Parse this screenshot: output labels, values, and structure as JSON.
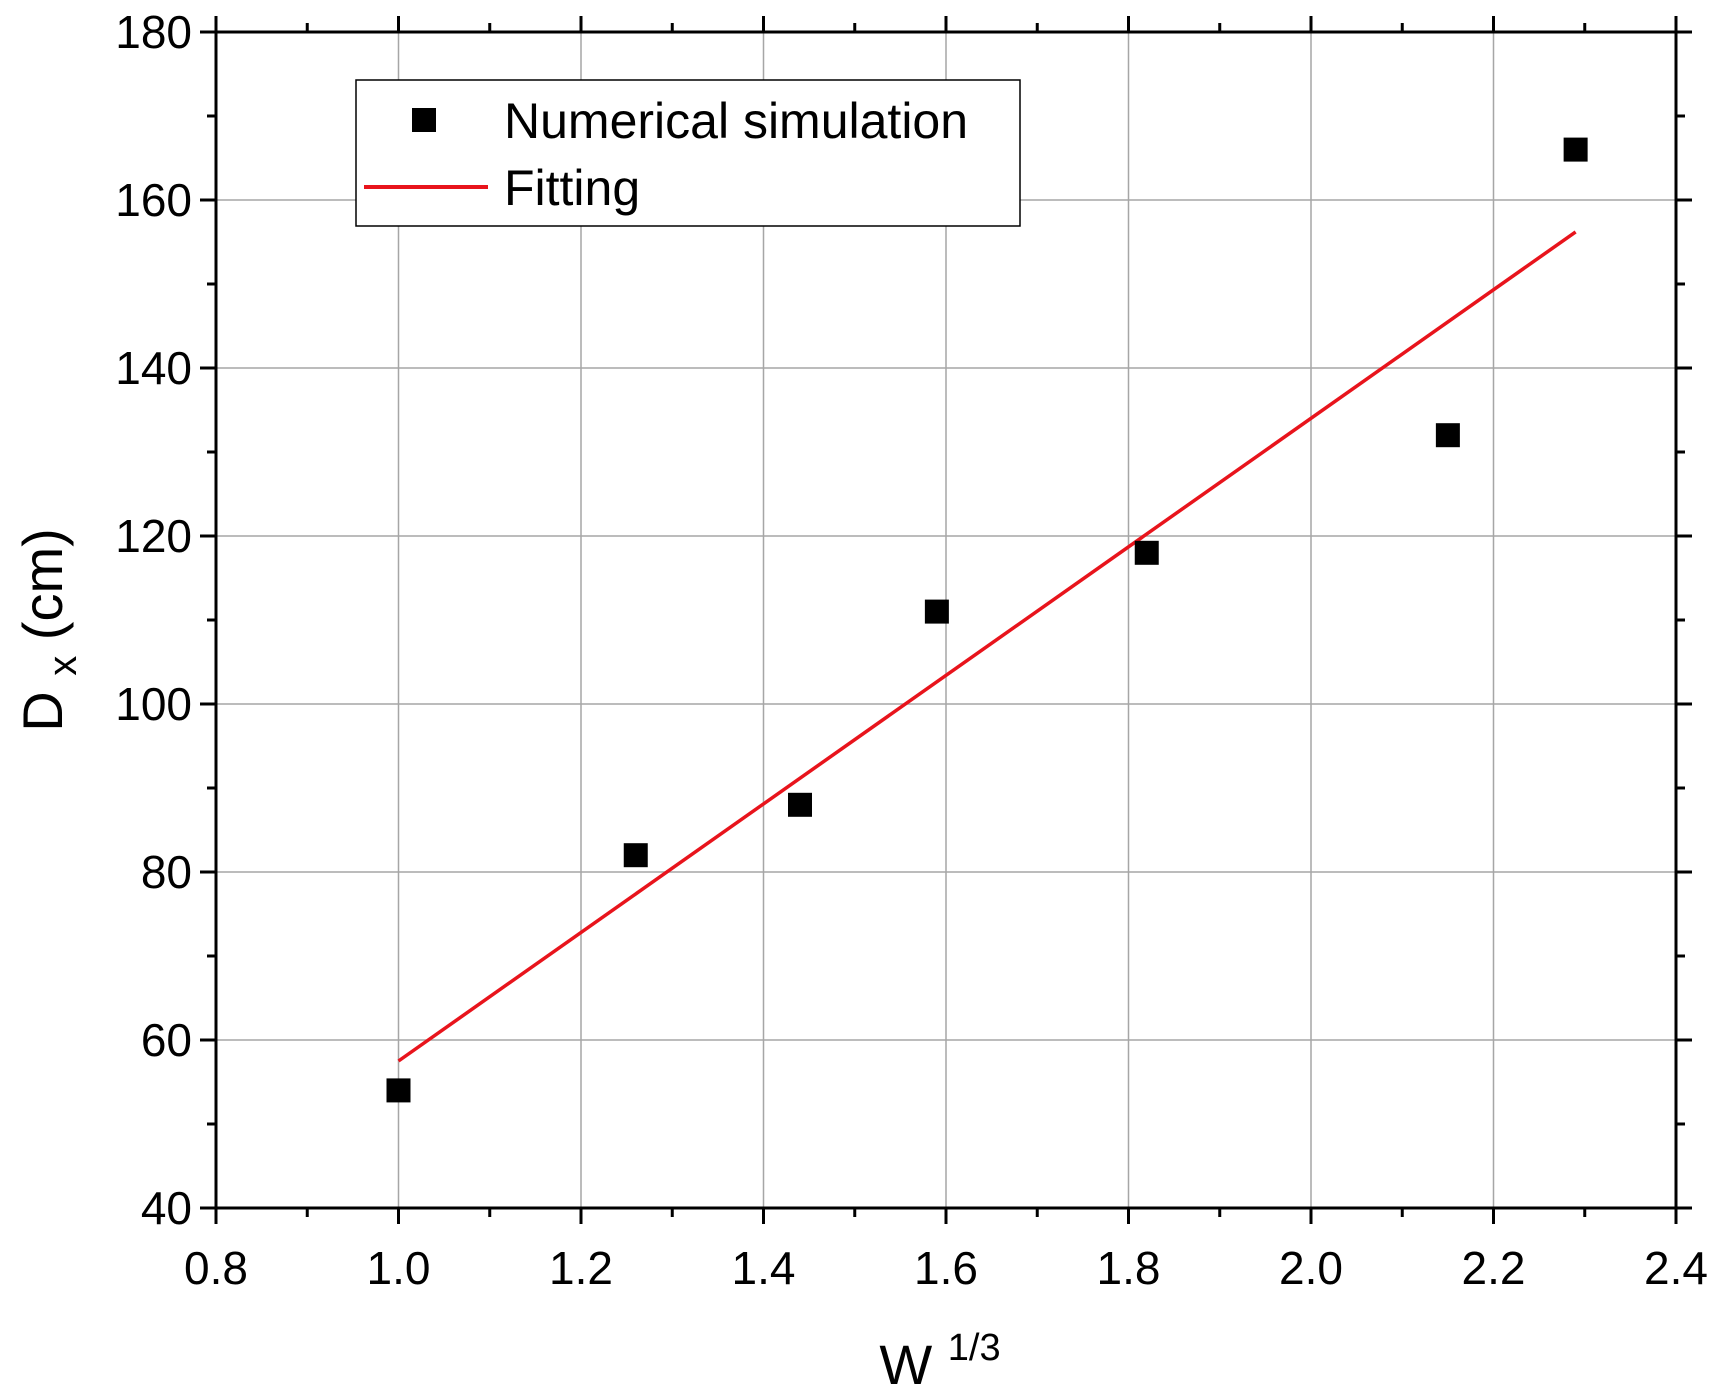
{
  "chart_data": {
    "type": "scatter",
    "title": "",
    "xlabel": {
      "base": "W",
      "superscript": "1/3"
    },
    "ylabel": {
      "base": "D",
      "subscript": "x",
      "suffix": "(cm)"
    },
    "xlim": [
      0.8,
      2.4
    ],
    "ylim": [
      40,
      180
    ],
    "x_major_ticks": [
      0.8,
      1.0,
      1.2,
      1.4,
      1.6,
      1.8,
      2.0,
      2.2,
      2.4
    ],
    "x_tick_labels": [
      "0.8",
      "1.0",
      "1.2",
      "1.4",
      "1.6",
      "1.8",
      "2.0",
      "2.2",
      "2.4"
    ],
    "y_major_ticks": [
      40,
      60,
      80,
      100,
      120,
      140,
      160,
      180
    ],
    "y_tick_labels": [
      "40",
      "60",
      "80",
      "100",
      "120",
      "140",
      "160",
      "180"
    ],
    "grid": true,
    "legend_position": "top-left",
    "series": [
      {
        "name": "Numerical simulation",
        "kind": "scatter",
        "marker": "square",
        "color": "#000000",
        "x": [
          1.0,
          1.26,
          1.44,
          1.59,
          1.82,
          2.15,
          2.29
        ],
        "y": [
          54,
          82,
          88,
          111,
          118,
          132,
          166
        ]
      },
      {
        "name": "Fitting",
        "kind": "line",
        "color": "#e8141c",
        "x": [
          1.0,
          2.29
        ],
        "y": [
          57.5,
          156.2
        ]
      }
    ]
  }
}
